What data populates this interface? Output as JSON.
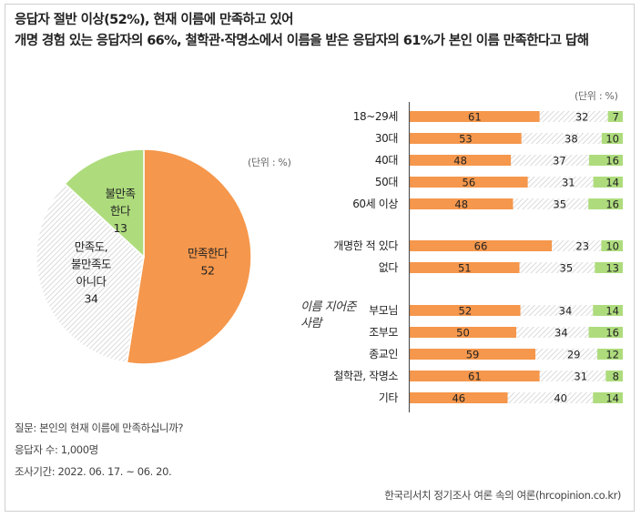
{
  "title_line1": "응답자 절반 이상(52%), 현재 이름에 만족하고 있어",
  "title_line2": "개명 경험 있는 응답자의 66%, 철학관·작명소에서 이름을 받은 응답자의 61%가 본인 이름 만족한다고 답해",
  "pie_unit": "(단위 : %)",
  "bar_unit": "(단위 : %)",
  "footer": {
    "question": "질문:  본인의 현재 이름에 만족하십니까?",
    "respondents": "응답자 수: 1,000명",
    "period": "조사기간: 2022. 06. 17. ~ 06. 20."
  },
  "source": "한국리서치 정기조사 여론 속의 여론(hrcopinion.co.kr)",
  "colors": {
    "satisfied": "#f5974c",
    "neutral_hatch": "#c8c8c8",
    "dissatisfied": "#aedc7d",
    "axis": "#555555"
  },
  "chart_data": [
    {
      "type": "pie",
      "slices": [
        {
          "label_lines": [
            "만족한다"
          ],
          "value": 52,
          "color": "#f5974c"
        },
        {
          "label_lines": [
            "만족도,",
            "불만족도",
            "아니다"
          ],
          "value": 34,
          "color": "hatch"
        },
        {
          "label_lines": [
            "불만족",
            "한다"
          ],
          "value": 13,
          "color": "#aedc7d"
        }
      ]
    },
    {
      "type": "bar",
      "stacked": true,
      "orientation": "horizontal",
      "group_annotation_lines": [
        "이름 지어준",
        "사람"
      ],
      "groups": [
        {
          "rows": [
            {
              "label": "18~29세",
              "values": [
                61,
                32,
                7
              ]
            },
            {
              "label": "30대",
              "values": [
                53,
                38,
                10
              ]
            },
            {
              "label": "40대",
              "values": [
                48,
                37,
                16
              ]
            },
            {
              "label": "50대",
              "values": [
                56,
                31,
                14
              ]
            },
            {
              "label": "60세 이상",
              "values": [
                48,
                35,
                16
              ]
            }
          ]
        },
        {
          "rows": [
            {
              "label": "개명한 적 있다",
              "values": [
                66,
                23,
                10
              ]
            },
            {
              "label": "없다",
              "values": [
                51,
                35,
                13
              ]
            }
          ]
        },
        {
          "rows": [
            {
              "label": "부모님",
              "values": [
                52,
                34,
                14
              ]
            },
            {
              "label": "조부모",
              "values": [
                50,
                34,
                16
              ]
            },
            {
              "label": "종교인",
              "values": [
                59,
                29,
                12
              ]
            },
            {
              "label": "철학관, 작명소",
              "values": [
                61,
                31,
                8
              ]
            },
            {
              "label": "기타",
              "values": [
                46,
                40,
                14
              ]
            }
          ]
        }
      ]
    }
  ]
}
